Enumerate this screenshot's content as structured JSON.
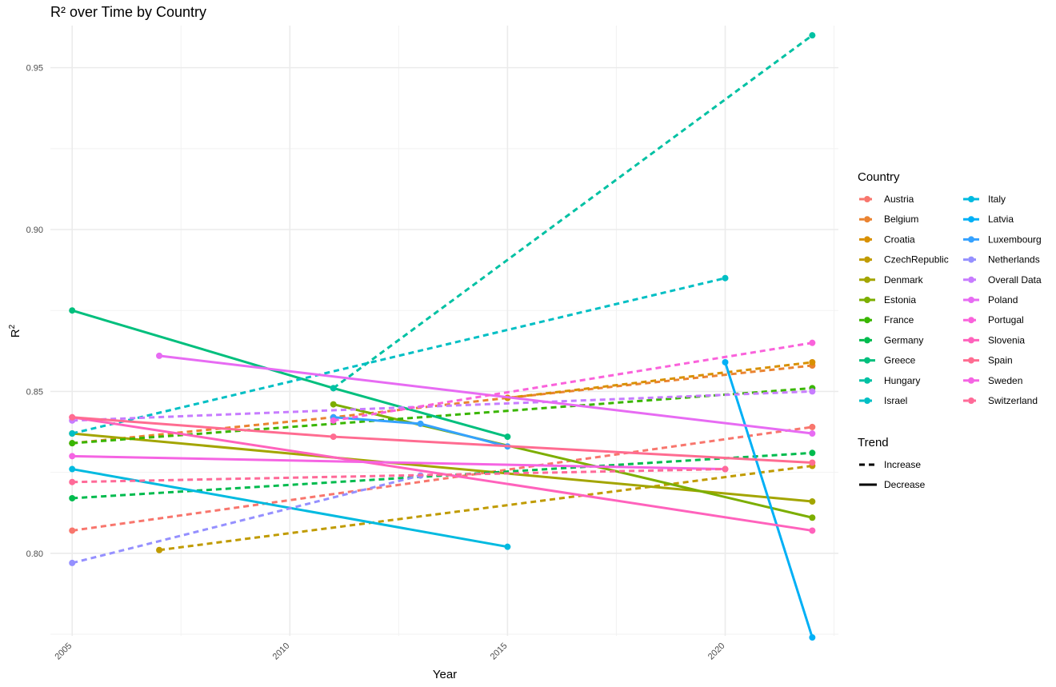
{
  "chart_data": {
    "type": "line",
    "title": "R² over Time by Country",
    "xlabel": "Year",
    "ylabel": "R",
    "ylabel_superscript": "2",
    "xlim": [
      2004.5,
      2022.6
    ],
    "ylim": [
      0.7745,
      0.963
    ],
    "x_ticks": [
      "2005",
      "2010",
      "2015",
      "2020"
    ],
    "y_ticks": [
      "0.80",
      "0.85",
      "0.90",
      "0.95"
    ],
    "legend_title": "Country",
    "trend_title": "Trend",
    "trend_items": [
      {
        "label": "Increase",
        "dash": true
      },
      {
        "label": "Decrease",
        "dash": false
      }
    ],
    "series": [
      {
        "name": "Austria",
        "color": "#F8766D",
        "trend": "Increase",
        "x": [
          2005,
          2022
        ],
        "y": [
          0.807,
          0.839
        ]
      },
      {
        "name": "Belgium",
        "color": "#EA8331",
        "trend": "Increase",
        "x": [
          2005,
          2011,
          2015,
          2022
        ],
        "y": [
          0.834,
          0.842,
          0.848,
          0.858
        ]
      },
      {
        "name": "Croatia",
        "color": "#D89000",
        "trend": "Increase",
        "x": [
          2015,
          2022
        ],
        "y": [
          0.848,
          0.859
        ]
      },
      {
        "name": "CzechRepublic",
        "color": "#C09B00",
        "trend": "Increase",
        "x": [
          2007,
          2022
        ],
        "y": [
          0.801,
          0.827
        ]
      },
      {
        "name": "Denmark",
        "color": "#A3A500",
        "trend": "Decrease",
        "x": [
          2005,
          2022
        ],
        "y": [
          0.837,
          0.816
        ]
      },
      {
        "name": "Estonia",
        "color": "#7CAE00",
        "trend": "Decrease",
        "x": [
          2011,
          2022
        ],
        "y": [
          0.846,
          0.811
        ]
      },
      {
        "name": "France",
        "color": "#39B600",
        "trend": "Increase",
        "x": [
          2005,
          2022
        ],
        "y": [
          0.834,
          0.851
        ]
      },
      {
        "name": "Germany",
        "color": "#00BB4E",
        "trend": "Increase",
        "x": [
          2005,
          2022
        ],
        "y": [
          0.817,
          0.831
        ]
      },
      {
        "name": "Greece",
        "color": "#00BF7D",
        "trend": "Decrease",
        "x": [
          2005,
          2011,
          2015
        ],
        "y": [
          0.875,
          0.851,
          0.836
        ]
      },
      {
        "name": "Hungary",
        "color": "#00C1A3",
        "trend": "Increase",
        "x": [
          2011,
          2022
        ],
        "y": [
          0.851,
          0.96
        ]
      },
      {
        "name": "Israel",
        "color": "#00BFC4",
        "trend": "Increase",
        "x": [
          2005,
          2020
        ],
        "y": [
          0.837,
          0.885
        ]
      },
      {
        "name": "Italy",
        "color": "#00BAE0",
        "trend": "Decrease",
        "x": [
          2005,
          2015
        ],
        "y": [
          0.826,
          0.802
        ]
      },
      {
        "name": "Latvia",
        "color": "#00B0F6",
        "trend": "Decrease",
        "x": [
          2020,
          2022
        ],
        "y": [
          0.859,
          0.774
        ]
      },
      {
        "name": "Luxembourg",
        "color": "#35A2FF",
        "trend": "Decrease",
        "x": [
          2011,
          2013,
          2015
        ],
        "y": [
          0.842,
          0.84,
          0.833
        ]
      },
      {
        "name": "Netherlands",
        "color": "#9590FF",
        "trend": "Increase",
        "x": [
          2005,
          2013
        ],
        "y": [
          0.797,
          0.824
        ]
      },
      {
        "name": "Overall Data",
        "color": "#C77CFF",
        "trend": "Increase",
        "x": [
          2005,
          2022
        ],
        "y": [
          0.841,
          0.85
        ]
      },
      {
        "name": "Poland",
        "color": "#E76BF3",
        "trend": "Decrease",
        "x": [
          2007,
          2022
        ],
        "y": [
          0.861,
          0.837
        ]
      },
      {
        "name": "Portugal",
        "color": "#FA62DB",
        "trend": "Increase",
        "x": [
          2011,
          2022
        ],
        "y": [
          0.841,
          0.865
        ]
      },
      {
        "name": "Slovenia",
        "color": "#FF62BC",
        "trend": "Decrease",
        "x": [
          2005,
          2022
        ],
        "y": [
          0.842,
          0.807
        ]
      },
      {
        "name": "Spain",
        "color": "#FF6C91",
        "trend": "Decrease",
        "x": [
          2005,
          2011,
          2022
        ],
        "y": [
          0.842,
          0.836,
          0.828
        ]
      },
      {
        "name": "Sweden",
        "color": "#F564E3",
        "trend": "Decrease",
        "x": [
          2005,
          2020
        ],
        "y": [
          0.83,
          0.826
        ]
      },
      {
        "name": "Switzerland",
        "color": "#FF6A98",
        "trend": "Increase",
        "x": [
          2005,
          2020
        ],
        "y": [
          0.822,
          0.826
        ]
      }
    ]
  }
}
